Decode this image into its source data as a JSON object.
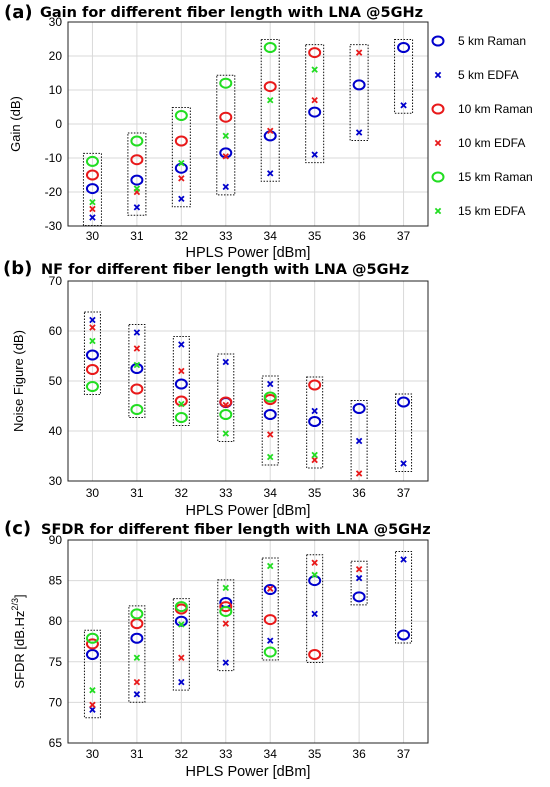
{
  "chart_data": [
    {
      "type": "scatter",
      "panel_label": "(a)",
      "title": "Gain for different fiber length with LNA @5GHz",
      "xlabel": "HPLS Power [dBm]",
      "ylabel": "Gain (dB)",
      "x": [
        30,
        31,
        32,
        33,
        34,
        35,
        36,
        37
      ],
      "xlim": [
        29.45,
        37.55
      ],
      "ylim": [
        -30,
        30
      ],
      "yticks": [
        -30,
        -20,
        -10,
        0,
        10,
        20,
        30
      ],
      "grid": true,
      "legend_position": "right",
      "series": [
        {
          "name": "5 km Raman",
          "marker": "circle",
          "color": "#0000cc",
          "values": [
            -19,
            -16.5,
            -13,
            -8.5,
            -3.5,
            3.5,
            11.5,
            22.5
          ]
        },
        {
          "name": "5 km EDFA",
          "marker": "x",
          "color": "#0000cc",
          "values": [
            -27.5,
            -24.5,
            -22,
            -18.5,
            -14.5,
            -9,
            -2.5,
            5.5
          ]
        },
        {
          "name": "10 km Raman",
          "marker": "circle",
          "color": "#e8191a",
          "values": [
            -15,
            -10.5,
            -5,
            2,
            11,
            21,
            null,
            null
          ]
        },
        {
          "name": "10 km EDFA",
          "marker": "x",
          "color": "#e8191a",
          "values": [
            -25,
            -20,
            -16,
            -9.5,
            -2,
            7,
            21,
            null
          ]
        },
        {
          "name": "15 km Raman",
          "marker": "circle",
          "color": "#22dd22",
          "values": [
            -11,
            -5,
            2.5,
            12,
            22.5,
            null,
            null,
            null
          ]
        },
        {
          "name": "15 km EDFA",
          "marker": "x",
          "color": "#22dd22",
          "values": [
            -23,
            -19,
            -11.5,
            -3.5,
            7,
            16,
            null,
            null
          ]
        }
      ]
    },
    {
      "type": "scatter",
      "panel_label": "(b)",
      "title": "NF for different fiber length with LNA @5GHz",
      "xlabel": "HPLS Power [dBm]",
      "ylabel": "Noise Figure (dB)",
      "x": [
        30,
        31,
        32,
        33,
        34,
        35,
        36,
        37
      ],
      "xlim": [
        29.45,
        37.55
      ],
      "ylim": [
        30,
        70
      ],
      "yticks": [
        30,
        40,
        50,
        60,
        70
      ],
      "grid": true,
      "series": [
        {
          "name": "5 km Raman",
          "marker": "circle",
          "color": "#0000cc",
          "values": [
            55.2,
            52.5,
            49.4,
            45.7,
            43.3,
            41.9,
            44.5,
            45.8
          ]
        },
        {
          "name": "5 km EDFA",
          "marker": "x",
          "color": "#0000cc",
          "values": [
            62.2,
            59.7,
            57.3,
            53.8,
            49.4,
            44,
            38,
            33.5
          ]
        },
        {
          "name": "10 km Raman",
          "marker": "circle",
          "color": "#e8191a",
          "values": [
            52.3,
            48.4,
            46,
            45.8,
            46.3,
            49.2,
            null,
            null
          ]
        },
        {
          "name": "10 km EDFA",
          "marker": "x",
          "color": "#e8191a",
          "values": [
            60.7,
            56.5,
            52,
            45.2,
            39.3,
            34.2,
            31.5,
            null
          ]
        },
        {
          "name": "15 km Raman",
          "marker": "circle",
          "color": "#22dd22",
          "values": [
            48.9,
            44.3,
            42.7,
            43.3,
            46.8,
            null,
            null,
            null
          ]
        },
        {
          "name": "15 km EDFA",
          "marker": "x",
          "color": "#22dd22",
          "values": [
            58,
            53.2,
            45.4,
            39.5,
            34.8,
            35.2,
            null,
            null
          ]
        }
      ]
    },
    {
      "type": "scatter",
      "panel_label": "(c)",
      "title": "SFDR for different fiber length with LNA @5GHz",
      "xlabel": "HPLS Power [dBm]",
      "ylabel": "SFDR [dB.Hz",
      "ylabel_sup": "2/3",
      "ylabel_end": "]",
      "x": [
        30,
        31,
        32,
        33,
        34,
        35,
        36,
        37
      ],
      "xlim": [
        29.45,
        37.55
      ],
      "ylim": [
        65,
        90
      ],
      "yticks": [
        65,
        70,
        75,
        80,
        85,
        90
      ],
      "grid": true,
      "series": [
        {
          "name": "5 km Raman",
          "marker": "circle",
          "color": "#0000cc",
          "values": [
            75.9,
            77.9,
            80,
            82.3,
            83.9,
            85,
            83,
            78.3
          ]
        },
        {
          "name": "5 km EDFA",
          "marker": "x",
          "color": "#0000cc",
          "values": [
            69.1,
            71,
            72.5,
            74.9,
            77.6,
            80.9,
            85.3,
            87.6
          ]
        },
        {
          "name": "10 km Raman",
          "marker": "circle",
          "color": "#e8191a",
          "values": [
            77.2,
            79.7,
            81.5,
            81.8,
            80.2,
            75.9,
            null,
            null
          ]
        },
        {
          "name": "10 km EDFA",
          "marker": "x",
          "color": "#e8191a",
          "values": [
            69.7,
            72.5,
            75.5,
            79.7,
            84,
            87.2,
            86.4,
            null
          ]
        },
        {
          "name": "15 km Raman",
          "marker": "circle",
          "color": "#22dd22",
          "values": [
            77.9,
            80.9,
            81.8,
            81.2,
            76.2,
            null,
            null,
            null
          ]
        },
        {
          "name": "15 km EDFA",
          "marker": "x",
          "color": "#22dd22",
          "values": [
            71.5,
            75.5,
            79.6,
            84.1,
            86.8,
            85.7,
            null,
            null
          ]
        }
      ]
    }
  ]
}
